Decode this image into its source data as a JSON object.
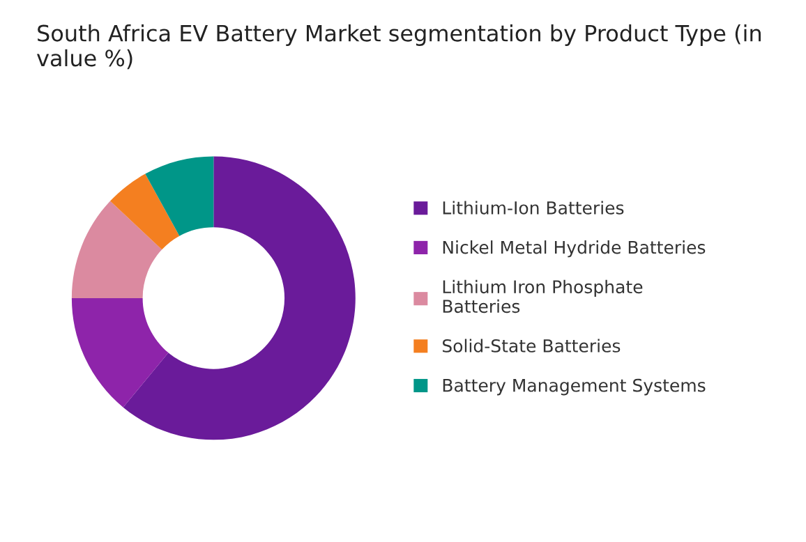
{
  "chart_data": {
    "type": "donut",
    "title": "South Africa EV Battery Market segmentation by Product Type (in value %)",
    "categories": [
      "Lithium-Ion Batteries",
      "Nickel Metal Hydride Batteries",
      "Lithium Iron Phosphate\nBatteries",
      "Solid-State Batteries",
      "Battery Management Systems"
    ],
    "values": [
      61,
      14,
      12,
      5,
      8
    ],
    "colors": [
      "#6a1b9a",
      "#8e24aa",
      "#db8aa0",
      "#f47f20",
      "#009688"
    ],
    "legend": "right"
  }
}
